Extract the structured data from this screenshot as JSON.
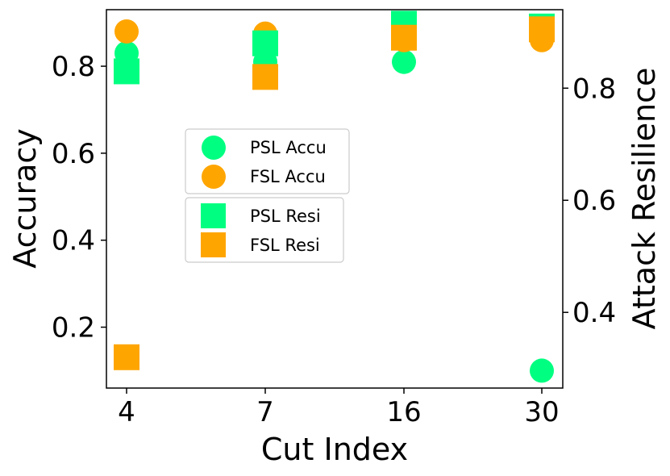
{
  "chart_data": {
    "type": "scatter",
    "title": "",
    "xlabel": "Cut Index",
    "ylabel": "Accuracy",
    "y2label": "Attack Resilience",
    "categories": [
      "4",
      "7",
      "16",
      "30"
    ],
    "ylim": [
      0.06,
      0.93
    ],
    "y2lim": [
      0.265,
      0.94
    ],
    "yticks": [
      "0.2",
      "0.4",
      "0.6",
      "0.8"
    ],
    "y2ticks": [
      "0.4",
      "0.6",
      "0.8"
    ],
    "series": [
      {
        "name": "PSL Accu",
        "axis": "left",
        "marker": "circle",
        "color": "#00ff80",
        "values": [
          0.83,
          0.81,
          0.81,
          0.1
        ],
        "err": [
          0,
          0,
          0,
          0
        ]
      },
      {
        "name": "FSL Accu",
        "axis": "left",
        "marker": "circle",
        "color": "#ffa500",
        "values": [
          0.88,
          0.875,
          0.86,
          0.86
        ],
        "err": [
          0,
          0,
          0,
          0
        ]
      },
      {
        "name": "PSL Resi",
        "axis": "right",
        "marker": "square",
        "color": "#00ff80",
        "values": [
          0.83,
          0.88,
          0.915,
          0.91
        ],
        "err": [
          0.015,
          0,
          0.02,
          0.002
        ]
      },
      {
        "name": "FSL Resi",
        "axis": "right",
        "marker": "square",
        "color": "#ffa500",
        "values": [
          0.32,
          0.82,
          0.89,
          0.905
        ],
        "err": [
          0.013,
          0,
          0.01,
          0.004
        ]
      }
    ],
    "legend": [
      {
        "group": "accuracy",
        "entries": [
          "PSL Accu",
          "FSL Accu"
        ],
        "placement": "center-left"
      },
      {
        "group": "resilience",
        "entries": [
          "PSL Resi",
          "FSL Resi"
        ],
        "placement": "center-left"
      }
    ],
    "grid": false
  }
}
